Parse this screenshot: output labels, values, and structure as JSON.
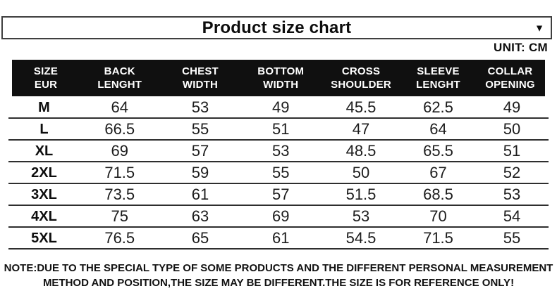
{
  "title_bar": {
    "title": "Product size chart",
    "dropdown_icon": "▼"
  },
  "unit_label": "UNIT: CM",
  "table": {
    "columns": [
      {
        "line1": "SIZE",
        "line2": "EUR"
      },
      {
        "line1": "BACK",
        "line2": "LENGHT"
      },
      {
        "line1": "CHEST",
        "line2": "WIDTH"
      },
      {
        "line1": "BOTTOM",
        "line2": "WIDTH"
      },
      {
        "line1": "CROSS",
        "line2": "SHOULDER"
      },
      {
        "line1": "SLEEVE",
        "line2": "LENGHT"
      },
      {
        "line1": "COLLAR",
        "line2": "OPENING"
      }
    ],
    "rows": [
      {
        "size": "M",
        "values": [
          "64",
          "53",
          "49",
          "45.5",
          "62.5",
          "49"
        ]
      },
      {
        "size": "L",
        "values": [
          "66.5",
          "55",
          "51",
          "47",
          "64",
          "50"
        ]
      },
      {
        "size": "XL",
        "values": [
          "69",
          "57",
          "53",
          "48.5",
          "65.5",
          "51"
        ]
      },
      {
        "size": "2XL",
        "values": [
          "71.5",
          "59",
          "55",
          "50",
          "67",
          "52"
        ]
      },
      {
        "size": "3XL",
        "values": [
          "73.5",
          "61",
          "57",
          "51.5",
          "68.5",
          "53"
        ]
      },
      {
        "size": "4XL",
        "values": [
          "75",
          "63",
          "69",
          "53",
          "70",
          "54"
        ]
      },
      {
        "size": "5XL",
        "values": [
          "76.5",
          "65",
          "61",
          "54.5",
          "71.5",
          "55"
        ]
      }
    ]
  },
  "note": {
    "line1": "NOTE:DUE TO THE SPECIAL TYPE OF SOME PRODUCTS AND THE DIFFERENT PERSONAL MEASUREMENT",
    "line2": "METHOD AND POSITION,THE SIZE MAY BE DIFFERENT.THE SIZE IS FOR REFERENCE ONLY!"
  },
  "colors": {
    "header_bg": "#101010",
    "header_text": "#ffffff",
    "body_text": "#1c1c1c",
    "separator_line": "#2e2e2e",
    "title_border": "#3f3f3f"
  }
}
